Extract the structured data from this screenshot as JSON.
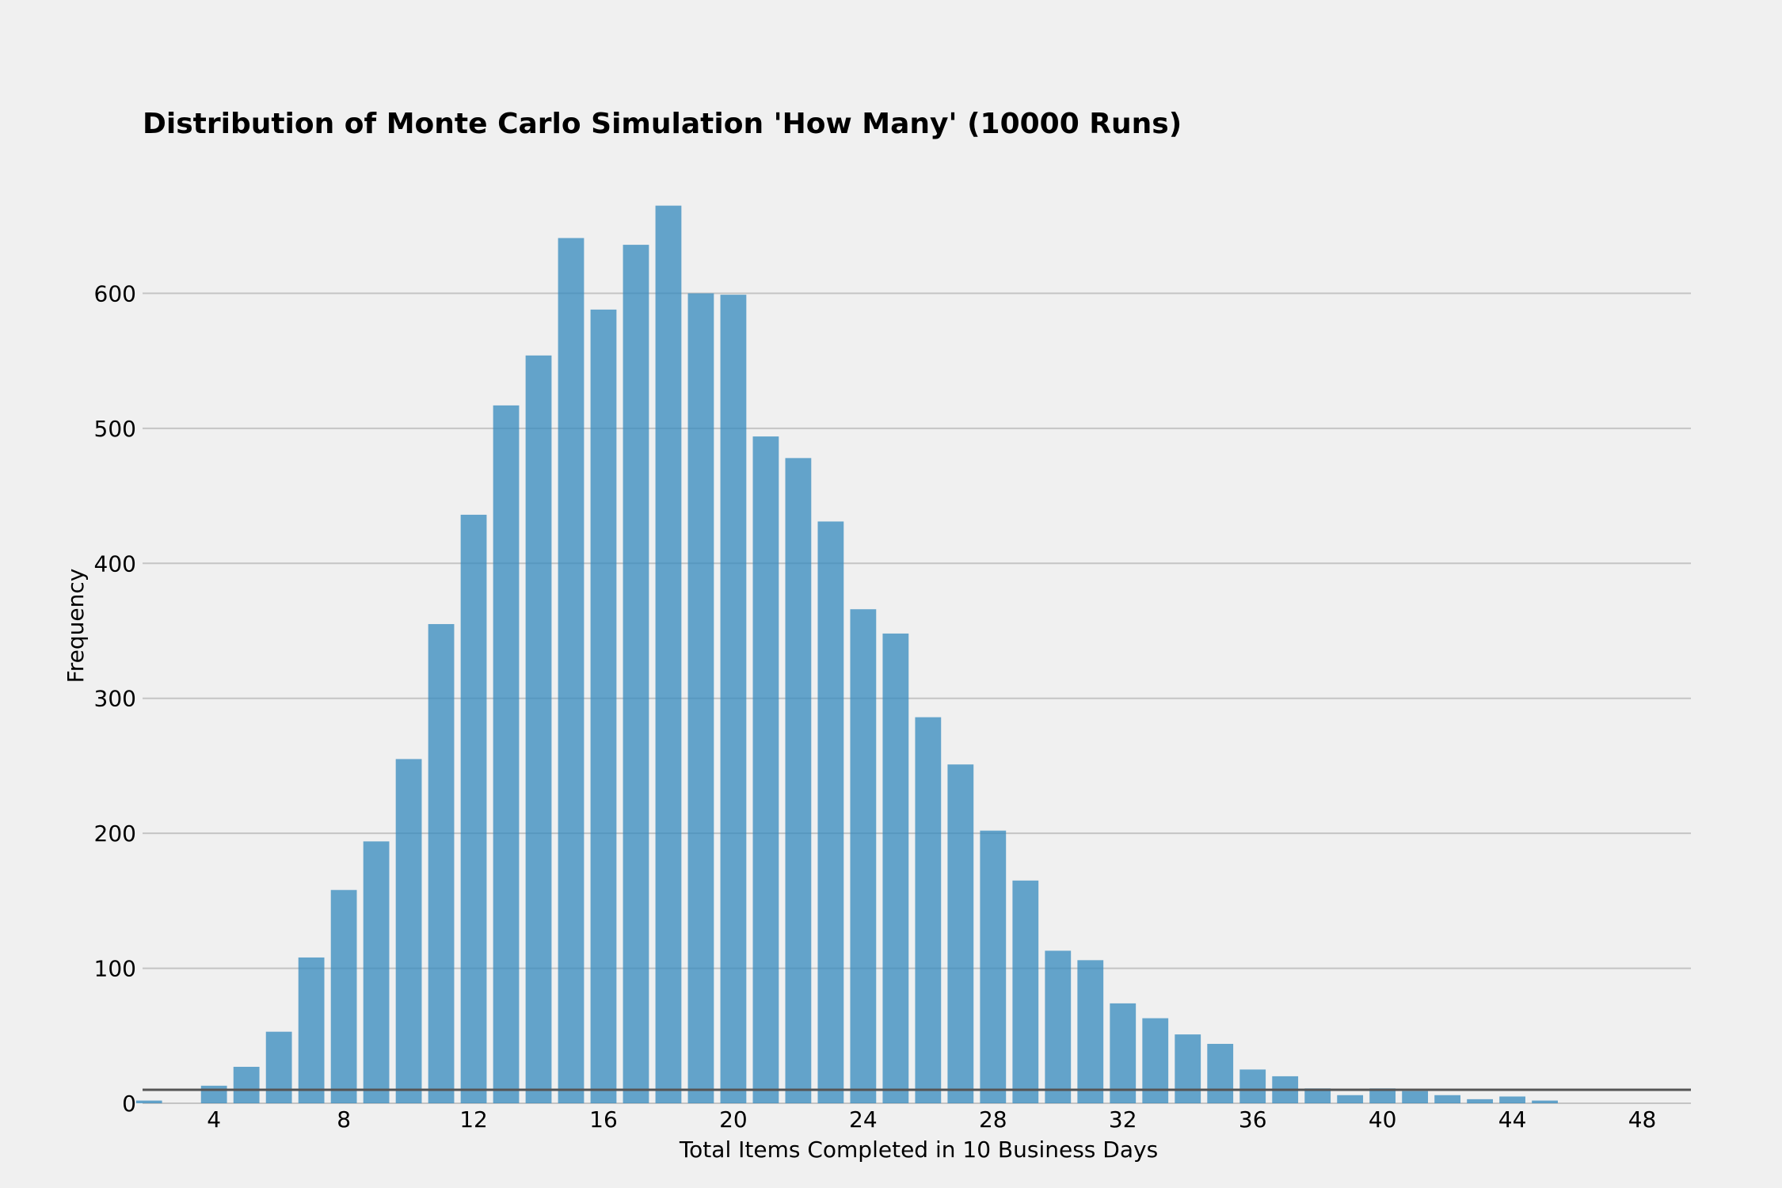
{
  "chart_data": {
    "type": "bar",
    "title": "Distribution of Monte Carlo Simulation 'How Many' (10000 Runs)",
    "xlabel": "Total Items Completed in 10 Business Days",
    "ylabel": "Frequency",
    "x": [
      2,
      3,
      4,
      5,
      6,
      7,
      8,
      9,
      10,
      11,
      12,
      13,
      14,
      15,
      16,
      17,
      18,
      19,
      20,
      21,
      22,
      23,
      24,
      25,
      26,
      27,
      28,
      29,
      30,
      31,
      32,
      33,
      34,
      35,
      36,
      37,
      38,
      39,
      40,
      41,
      42,
      43,
      44,
      45,
      46,
      47,
      48
    ],
    "values": [
      2,
      0,
      13,
      27,
      53,
      108,
      158,
      194,
      255,
      355,
      436,
      517,
      554,
      641,
      588,
      636,
      665,
      600,
      599,
      494,
      478,
      431,
      366,
      348,
      286,
      251,
      202,
      165,
      113,
      106,
      74,
      63,
      51,
      44,
      25,
      20,
      11,
      6,
      11,
      9,
      6,
      3,
      5,
      2,
      0,
      0,
      0
    ],
    "xlim": [
      1.8,
      49.5
    ],
    "ylim": [
      0,
      700
    ],
    "xticks": [
      4,
      8,
      12,
      16,
      20,
      24,
      28,
      32,
      36,
      40,
      44,
      48
    ],
    "yticks": [
      0,
      100,
      200,
      300,
      400,
      500,
      600
    ],
    "grid": "horizontal",
    "bar_color": "#348ABD",
    "baseline": {
      "value": 10,
      "color": "#555555"
    }
  }
}
